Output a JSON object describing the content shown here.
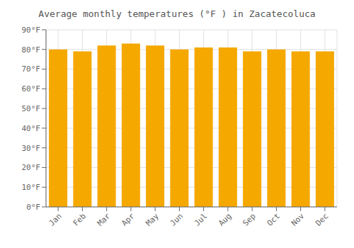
{
  "chart_data": {
    "type": "bar",
    "title": "Average monthly temperatures (°F ) in Zacatecoluca",
    "categories": [
      "Jan",
      "Feb",
      "Mar",
      "Apr",
      "May",
      "Jun",
      "Jul",
      "Aug",
      "Sep",
      "Oct",
      "Nov",
      "Dec"
    ],
    "values": [
      80,
      79,
      82,
      83,
      82,
      80,
      81,
      81,
      79,
      80,
      79,
      79
    ],
    "color": "#F5A800",
    "ylim": [
      0,
      90
    ],
    "yticks": [
      {
        "value": 0,
        "label": "0°F"
      },
      {
        "value": 10,
        "label": "10°F"
      },
      {
        "value": 20,
        "label": "20°F"
      },
      {
        "value": 30,
        "label": "30°F"
      },
      {
        "value": 40,
        "label": "40°F"
      },
      {
        "value": 50,
        "label": "50°F"
      },
      {
        "value": 60,
        "label": "60°F"
      },
      {
        "value": 70,
        "label": "70°F"
      },
      {
        "value": 80,
        "label": "80°F"
      },
      {
        "value": 90,
        "label": "90°F"
      }
    ],
    "grid": true
  }
}
